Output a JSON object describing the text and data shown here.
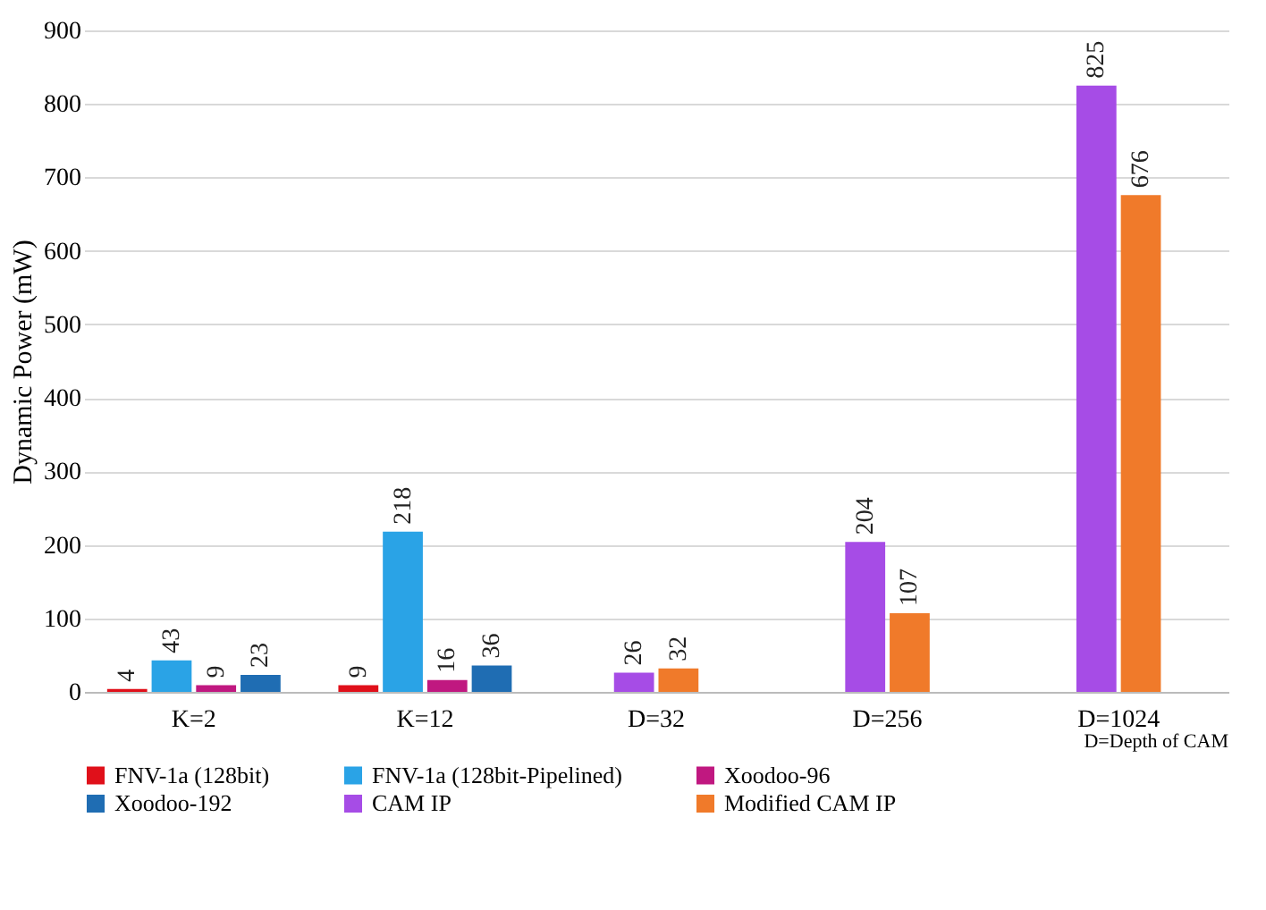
{
  "chart_data": {
    "type": "bar",
    "ylabel": "Dynamic Power (mW)",
    "categories": [
      "K=2",
      "K=12",
      "D=32",
      "D=256",
      "D=1024"
    ],
    "series": [
      {
        "name": "FNV-1a (128bit)",
        "color": "#e0101a",
        "values": [
          4,
          9,
          null,
          null,
          null
        ]
      },
      {
        "name": "FNV-1a (128bit-Pipelined)",
        "color": "#2aa3e6",
        "values": [
          43,
          218,
          null,
          null,
          null
        ]
      },
      {
        "name": "Xoodoo-96",
        "color": "#c01880",
        "values": [
          9,
          16,
          null,
          null,
          null
        ]
      },
      {
        "name": "Xoodoo-192",
        "color": "#1f6db3",
        "values": [
          23,
          36,
          null,
          null,
          null
        ]
      },
      {
        "name": "CAM IP",
        "color": "#a64ce6",
        "values": [
          null,
          null,
          26,
          204,
          825
        ]
      },
      {
        "name": "Modified CAM IP",
        "color": "#f07a2a",
        "values": [
          null,
          null,
          32,
          107,
          676
        ]
      }
    ],
    "ylim": [
      0,
      900
    ],
    "yticks": [
      0,
      100,
      200,
      300,
      400,
      500,
      600,
      700,
      800,
      900
    ],
    "grid": "y",
    "legend": "bottom",
    "data_labels": true,
    "annotations": [
      "D=Depth of CAM"
    ]
  }
}
